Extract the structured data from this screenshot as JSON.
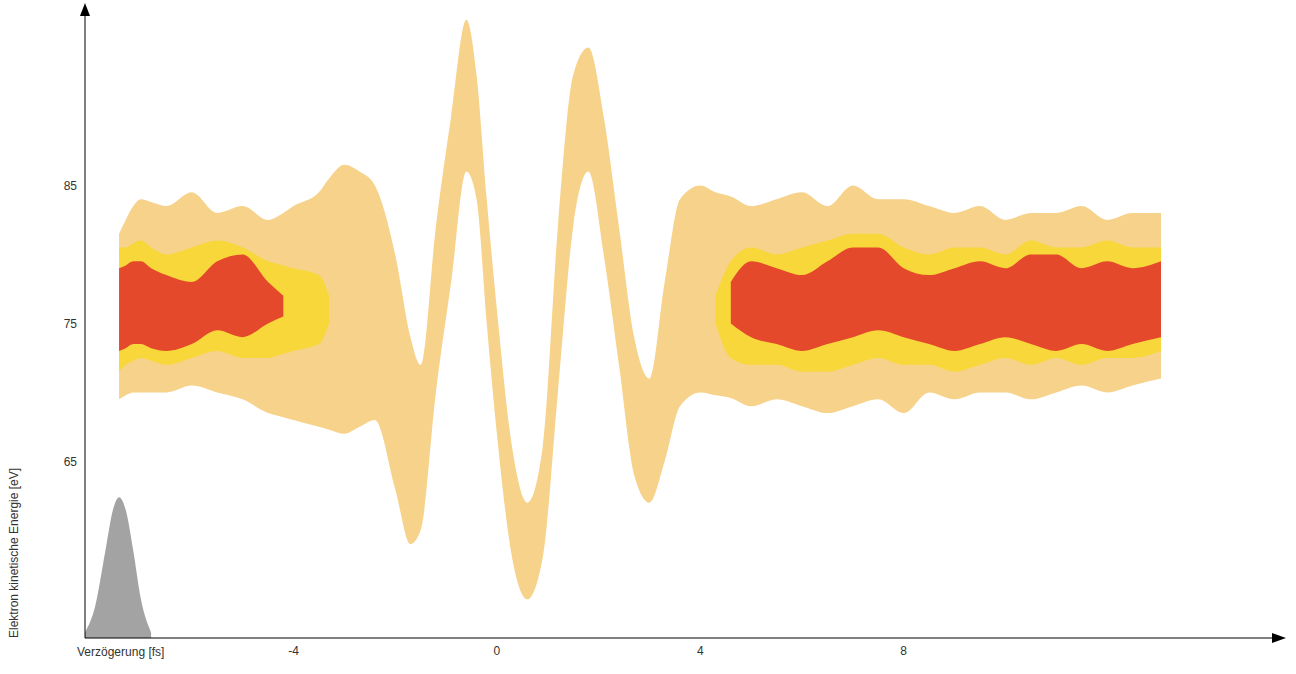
{
  "chart_data": {
    "type": "area_range",
    "x_label": "Verzögerung [fs]",
    "y_label": "Elektron kinetische Energie [eV]",
    "xlim": [
      -8.1,
      15.4
    ],
    "ylim": [
      52.2,
      98
    ],
    "xticks": [
      -4,
      0,
      4,
      8
    ],
    "yticks": [
      65,
      75,
      85
    ],
    "grid": false,
    "x": [
      -8.1,
      -7.9,
      -7.7,
      -7.55,
      -7.43,
      -7.3,
      -7.15,
      -7.0,
      -6.8,
      -6.5,
      -6,
      -5.5,
      -5,
      -4.5,
      -4.2,
      -4,
      -3.5,
      -3.3,
      -3,
      -2.7,
      -2.4,
      -2.0,
      -1.7,
      -1.5,
      -1.2,
      -0.9,
      -0.6,
      -0.4,
      -0.2,
      0,
      0.3,
      0.6,
      0.9,
      1.2,
      1.5,
      1.8,
      2.1,
      2.4,
      2.7,
      3.0,
      3.3,
      3.6,
      4.0,
      4.3,
      4.6,
      5,
      5.5,
      6,
      6.5,
      7,
      7.5,
      8,
      8.5,
      9,
      9.5,
      10,
      10.5,
      11,
      11.5,
      12,
      12.5,
      13.06
    ],
    "series": [
      {
        "type": "range",
        "color": "#f6d28a",
        "low": [
          null,
          null,
          null,
          null,
          69.5,
          69.8,
          70,
          70,
          70,
          70,
          70.5,
          70,
          69.5,
          68.5,
          68.2,
          68,
          67.5,
          67.3,
          67,
          67.5,
          68,
          63,
          59,
          60,
          70,
          78,
          86,
          84,
          75,
          67,
          58,
          55,
          58,
          70,
          82,
          86,
          80,
          72,
          64,
          62,
          65,
          69,
          70,
          69.8,
          69.6,
          69,
          69.5,
          69,
          68.5,
          69,
          69.5,
          68.5,
          70,
          69.5,
          70,
          70,
          69.5,
          70,
          70.5,
          70,
          70.5,
          71
        ],
        "high": [
          null,
          null,
          null,
          null,
          81.5,
          82.5,
          83.5,
          84,
          83.8,
          83.5,
          84.5,
          83,
          83.5,
          82.5,
          83,
          83.5,
          84.5,
          85.5,
          86.5,
          86,
          85,
          80,
          74,
          72,
          82,
          90,
          97,
          93,
          84,
          76,
          66,
          62,
          66,
          82,
          93,
          95,
          90,
          82,
          74,
          71,
          78,
          84,
          85,
          84.5,
          84.2,
          83.5,
          84,
          84.5,
          83.5,
          85,
          84,
          84,
          83.5,
          83,
          83.5,
          82.5,
          83,
          83,
          83.5,
          82.5,
          83,
          83
        ]
      },
      {
        "type": "range",
        "color": "#f8d73a",
        "low": [
          null,
          null,
          null,
          null,
          71.5,
          72,
          72.3,
          72.5,
          72.3,
          72,
          72.5,
          73,
          72.5,
          72.5,
          72.8,
          73,
          73.5,
          75,
          null,
          null,
          null,
          null,
          null,
          null,
          null,
          null,
          null,
          null,
          null,
          null,
          null,
          null,
          null,
          null,
          null,
          null,
          null,
          null,
          null,
          null,
          null,
          null,
          null,
          75,
          72.5,
          72,
          72,
          71.5,
          71.5,
          72,
          72.5,
          72,
          72,
          71.5,
          72,
          72.5,
          72,
          72.5,
          72,
          72.5,
          72.5,
          73
        ],
        "high": [
          null,
          null,
          null,
          null,
          80.5,
          80.5,
          80.8,
          81,
          80.5,
          80,
          80.5,
          81,
          80.5,
          79.5,
          79.2,
          79,
          78.5,
          77,
          null,
          null,
          null,
          null,
          null,
          null,
          null,
          null,
          null,
          null,
          null,
          null,
          null,
          null,
          null,
          null,
          null,
          null,
          null,
          null,
          null,
          null,
          null,
          null,
          null,
          77,
          79.5,
          80.5,
          80,
          80.5,
          81,
          81.5,
          81.5,
          80.5,
          80,
          80.5,
          80.5,
          80,
          81,
          80.5,
          80.5,
          81,
          80.5,
          80.5
        ]
      },
      {
        "type": "range",
        "color": "#e5492b",
        "low": [
          null,
          null,
          null,
          null,
          73,
          73.2,
          73.5,
          73.5,
          73.2,
          73,
          73.5,
          74.5,
          74,
          75,
          75.5,
          null,
          null,
          null,
          null,
          null,
          null,
          null,
          null,
          null,
          null,
          null,
          null,
          null,
          null,
          null,
          null,
          null,
          null,
          null,
          null,
          null,
          null,
          null,
          null,
          null,
          null,
          null,
          null,
          null,
          75,
          74,
          73.5,
          73,
          73.5,
          74,
          74.5,
          74,
          73.5,
          73,
          73.5,
          74,
          73.5,
          73,
          73.5,
          73,
          73.5,
          74
        ],
        "high": [
          null,
          null,
          null,
          null,
          79,
          79.2,
          79.5,
          79.5,
          79,
          78.5,
          78,
          79.5,
          80,
          78,
          77,
          null,
          null,
          null,
          null,
          null,
          null,
          null,
          null,
          null,
          null,
          null,
          null,
          null,
          null,
          null,
          null,
          null,
          null,
          null,
          null,
          null,
          null,
          null,
          null,
          null,
          null,
          null,
          null,
          null,
          78,
          79.5,
          79,
          78.5,
          79.5,
          80.5,
          80.5,
          79,
          78.5,
          79,
          79.5,
          79,
          80,
          80,
          79,
          79.5,
          79,
          79.5
        ]
      },
      {
        "type": "area",
        "color": "#a3a3a3",
        "values": [
          52.6,
          54.5,
          58.5,
          61.5,
          62.4,
          61.5,
          58.5,
          55,
          52.6,
          null,
          null,
          null,
          null,
          null,
          null,
          null,
          null,
          null,
          null,
          null,
          null,
          null,
          null,
          null,
          null,
          null,
          null,
          null,
          null,
          null,
          null,
          null,
          null,
          null,
          null,
          null,
          null,
          null,
          null,
          null,
          null,
          null,
          null,
          null,
          null,
          null,
          null,
          null,
          null,
          null,
          null,
          null,
          null,
          null,
          null,
          null,
          null,
          null,
          null,
          null,
          null,
          null
        ]
      }
    ]
  }
}
